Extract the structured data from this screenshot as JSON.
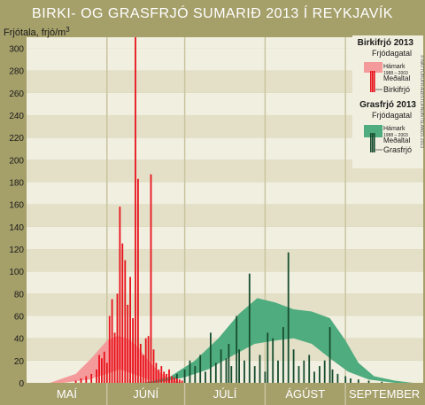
{
  "chart_data": {
    "type": "bar",
    "title": "BIRKI- OG GRASFRJÓ SUMARIÐ 2013 Í REYKJAVÍK",
    "ylabel": "Frjótala, frjó/m",
    "ylabel_sup": "3",
    "ylim": [
      0,
      310
    ],
    "yticks": [
      0,
      20,
      40,
      60,
      80,
      100,
      120,
      140,
      160,
      180,
      200,
      220,
      240,
      260,
      280,
      300
    ],
    "months": [
      "MAÍ",
      "JÚNÍ",
      "JÚLÍ",
      "ÁGÚST",
      "SEPTEMBER"
    ],
    "x_start": "2013-05-01",
    "x_end": "2013-09-30",
    "colors": {
      "background": "#a59f6a",
      "plot_band_light": "#f1efe0",
      "plot_band_dark": "#e3e0c7",
      "birch_bar": "#e8121b",
      "birch_band": "#f59a9a",
      "grass_bar": "#174d2f",
      "grass_band": "#4fac7f",
      "title": "#ffffff"
    },
    "legend": {
      "birch_title": "Birkifrjó 2013",
      "grass_title": "Grasfrjó 2013",
      "frjodagatal": "Frjódagatal",
      "hamark": "Hámark",
      "period": "1988 – 2003",
      "medaltal": "Meðaltal",
      "birch_label": "Birkifrjó",
      "grass_label": "Grasfrjó"
    },
    "copyright": "© NÁTTÚRUFRÆÐISTOFNUN ÍSLANDS 2013",
    "birch_counts": [
      {
        "date": "2013-05-20",
        "value": 2
      },
      {
        "date": "2013-05-22",
        "value": 4
      },
      {
        "date": "2013-05-24",
        "value": 6
      },
      {
        "date": "2013-05-26",
        "value": 8
      },
      {
        "date": "2013-05-28",
        "value": 12
      },
      {
        "date": "2013-05-29",
        "value": 25
      },
      {
        "date": "2013-05-30",
        "value": 22
      },
      {
        "date": "2013-05-31",
        "value": 28
      },
      {
        "date": "2013-06-01",
        "value": 18
      },
      {
        "date": "2013-06-02",
        "value": 60
      },
      {
        "date": "2013-06-03",
        "value": 75
      },
      {
        "date": "2013-06-04",
        "value": 45
      },
      {
        "date": "2013-06-05",
        "value": 80
      },
      {
        "date": "2013-06-06",
        "value": 158
      },
      {
        "date": "2013-06-07",
        "value": 125
      },
      {
        "date": "2013-06-08",
        "value": 110
      },
      {
        "date": "2013-06-09",
        "value": 70
      },
      {
        "date": "2013-06-10",
        "value": 95
      },
      {
        "date": "2013-06-11",
        "value": 58
      },
      {
        "date": "2013-06-12",
        "value": 310
      },
      {
        "date": "2013-06-13",
        "value": 183
      },
      {
        "date": "2013-06-14",
        "value": 35
      },
      {
        "date": "2013-06-15",
        "value": 25
      },
      {
        "date": "2013-06-16",
        "value": 40
      },
      {
        "date": "2013-06-17",
        "value": 42
      },
      {
        "date": "2013-06-18",
        "value": 187
      },
      {
        "date": "2013-06-19",
        "value": 30
      },
      {
        "date": "2013-06-20",
        "value": 18
      },
      {
        "date": "2013-06-21",
        "value": 12
      },
      {
        "date": "2013-06-22",
        "value": 15
      },
      {
        "date": "2013-06-23",
        "value": 10
      },
      {
        "date": "2013-06-24",
        "value": 8
      },
      {
        "date": "2013-06-25",
        "value": 12
      },
      {
        "date": "2013-06-26",
        "value": 6
      },
      {
        "date": "2013-06-27",
        "value": 5
      },
      {
        "date": "2013-06-28",
        "value": 4
      },
      {
        "date": "2013-06-29",
        "value": 3
      },
      {
        "date": "2013-06-30",
        "value": 2
      }
    ],
    "grass_counts": [
      {
        "date": "2013-06-05",
        "value": 2
      },
      {
        "date": "2013-06-10",
        "value": 3
      },
      {
        "date": "2013-06-14",
        "value": 4
      },
      {
        "date": "2013-06-18",
        "value": 3
      },
      {
        "date": "2013-06-22",
        "value": 5
      },
      {
        "date": "2013-06-25",
        "value": 6
      },
      {
        "date": "2013-06-28",
        "value": 8
      },
      {
        "date": "2013-07-01",
        "value": 12
      },
      {
        "date": "2013-07-03",
        "value": 20
      },
      {
        "date": "2013-07-05",
        "value": 15
      },
      {
        "date": "2013-07-07",
        "value": 25
      },
      {
        "date": "2013-07-09",
        "value": 10
      },
      {
        "date": "2013-07-11",
        "value": 45
      },
      {
        "date": "2013-07-13",
        "value": 18
      },
      {
        "date": "2013-07-15",
        "value": 30
      },
      {
        "date": "2013-07-17",
        "value": 22
      },
      {
        "date": "2013-07-18",
        "value": 35
      },
      {
        "date": "2013-07-19",
        "value": 15
      },
      {
        "date": "2013-07-21",
        "value": 60
      },
      {
        "date": "2013-07-22",
        "value": 30
      },
      {
        "date": "2013-07-24",
        "value": 20
      },
      {
        "date": "2013-07-26",
        "value": 98
      },
      {
        "date": "2013-07-28",
        "value": 15
      },
      {
        "date": "2013-07-30",
        "value": 25
      },
      {
        "date": "2013-08-01",
        "value": 10
      },
      {
        "date": "2013-08-02",
        "value": 45
      },
      {
        "date": "2013-08-04",
        "value": 40
      },
      {
        "date": "2013-08-06",
        "value": 20
      },
      {
        "date": "2013-08-08",
        "value": 50
      },
      {
        "date": "2013-08-10",
        "value": 117
      },
      {
        "date": "2013-08-12",
        "value": 30
      },
      {
        "date": "2013-08-14",
        "value": 15
      },
      {
        "date": "2013-08-16",
        "value": 20
      },
      {
        "date": "2013-08-18",
        "value": 25
      },
      {
        "date": "2013-08-20",
        "value": 10
      },
      {
        "date": "2013-08-22",
        "value": 15
      },
      {
        "date": "2013-08-24",
        "value": 20
      },
      {
        "date": "2013-08-26",
        "value": 50
      },
      {
        "date": "2013-08-27",
        "value": 12
      },
      {
        "date": "2013-08-29",
        "value": 8
      },
      {
        "date": "2013-09-01",
        "value": 6
      },
      {
        "date": "2013-09-03",
        "value": 4
      },
      {
        "date": "2013-09-06",
        "value": 3
      },
      {
        "date": "2013-09-10",
        "value": 2
      },
      {
        "date": "2013-09-15",
        "value": 1
      }
    ],
    "birch_calendar_max": [
      {
        "date": "2013-05-10",
        "value": 0
      },
      {
        "date": "2013-05-20",
        "value": 8
      },
      {
        "date": "2013-05-26",
        "value": 22
      },
      {
        "date": "2013-06-01",
        "value": 38
      },
      {
        "date": "2013-06-05",
        "value": 42
      },
      {
        "date": "2013-06-09",
        "value": 40
      },
      {
        "date": "2013-06-13",
        "value": 32
      },
      {
        "date": "2013-06-17",
        "value": 20
      },
      {
        "date": "2013-06-21",
        "value": 10
      },
      {
        "date": "2013-06-25",
        "value": 4
      },
      {
        "date": "2013-06-30",
        "value": 0
      }
    ],
    "birch_calendar_mean": [
      {
        "date": "2013-05-15",
        "value": 0
      },
      {
        "date": "2013-05-25",
        "value": 3
      },
      {
        "date": "2013-06-01",
        "value": 8
      },
      {
        "date": "2013-06-06",
        "value": 12
      },
      {
        "date": "2013-06-11",
        "value": 8
      },
      {
        "date": "2013-06-17",
        "value": 3
      },
      {
        "date": "2013-06-25",
        "value": 0
      }
    ],
    "grass_calendar_max": [
      {
        "date": "2013-06-15",
        "value": 0
      },
      {
        "date": "2013-06-25",
        "value": 5
      },
      {
        "date": "2013-07-05",
        "value": 20
      },
      {
        "date": "2013-07-14",
        "value": 40
      },
      {
        "date": "2013-07-22",
        "value": 62
      },
      {
        "date": "2013-07-29",
        "value": 76
      },
      {
        "date": "2013-08-05",
        "value": 72
      },
      {
        "date": "2013-08-12",
        "value": 66
      },
      {
        "date": "2013-08-19",
        "value": 64
      },
      {
        "date": "2013-08-26",
        "value": 58
      },
      {
        "date": "2013-09-01",
        "value": 38
      },
      {
        "date": "2013-09-06",
        "value": 18
      },
      {
        "date": "2013-09-12",
        "value": 6
      },
      {
        "date": "2013-09-20",
        "value": 2
      },
      {
        "date": "2013-09-27",
        "value": 0
      }
    ],
    "grass_calendar_mean": [
      {
        "date": "2013-06-20",
        "value": 0
      },
      {
        "date": "2013-07-01",
        "value": 5
      },
      {
        "date": "2013-07-10",
        "value": 12
      },
      {
        "date": "2013-07-20",
        "value": 25
      },
      {
        "date": "2013-07-28",
        "value": 35
      },
      {
        "date": "2013-08-05",
        "value": 38
      },
      {
        "date": "2013-08-12",
        "value": 40
      },
      {
        "date": "2013-08-19",
        "value": 35
      },
      {
        "date": "2013-08-26",
        "value": 22
      },
      {
        "date": "2013-09-02",
        "value": 10
      },
      {
        "date": "2013-09-10",
        "value": 3
      },
      {
        "date": "2013-09-20",
        "value": 0
      }
    ]
  }
}
